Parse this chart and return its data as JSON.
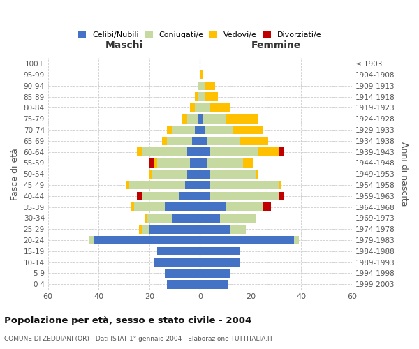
{
  "age_groups": [
    "0-4",
    "5-9",
    "10-14",
    "15-19",
    "20-24",
    "25-29",
    "30-34",
    "35-39",
    "40-44",
    "45-49",
    "50-54",
    "55-59",
    "60-64",
    "65-69",
    "70-74",
    "75-79",
    "80-84",
    "85-89",
    "90-94",
    "95-99",
    "100+"
  ],
  "birth_years": [
    "1999-2003",
    "1994-1998",
    "1989-1993",
    "1984-1988",
    "1979-1983",
    "1974-1978",
    "1969-1973",
    "1964-1968",
    "1959-1963",
    "1954-1958",
    "1949-1953",
    "1944-1948",
    "1939-1943",
    "1934-1938",
    "1929-1933",
    "1924-1928",
    "1919-1923",
    "1914-1918",
    "1909-1913",
    "1904-1908",
    "≤ 1903"
  ],
  "maschi": {
    "celibi": [
      13,
      14,
      18,
      17,
      42,
      20,
      11,
      14,
      8,
      6,
      5,
      4,
      5,
      3,
      2,
      1,
      0,
      0,
      0,
      0,
      0
    ],
    "coniugati": [
      0,
      0,
      0,
      0,
      2,
      3,
      10,
      12,
      15,
      22,
      14,
      13,
      18,
      10,
      9,
      4,
      2,
      1,
      1,
      0,
      0
    ],
    "vedovi": [
      0,
      0,
      0,
      0,
      0,
      1,
      1,
      1,
      0,
      1,
      1,
      1,
      2,
      2,
      2,
      2,
      2,
      1,
      0,
      0,
      0
    ],
    "divorziati": [
      0,
      0,
      0,
      0,
      0,
      0,
      0,
      0,
      2,
      0,
      0,
      2,
      0,
      0,
      0,
      0,
      0,
      0,
      0,
      0,
      0
    ]
  },
  "femmine": {
    "nubili": [
      11,
      12,
      16,
      16,
      37,
      12,
      8,
      10,
      4,
      4,
      4,
      3,
      4,
      3,
      2,
      1,
      0,
      0,
      0,
      0,
      0
    ],
    "coniugate": [
      0,
      0,
      0,
      0,
      2,
      6,
      14,
      15,
      27,
      27,
      18,
      14,
      19,
      13,
      11,
      9,
      4,
      2,
      2,
      0,
      0
    ],
    "vedove": [
      0,
      0,
      0,
      0,
      0,
      0,
      0,
      0,
      0,
      1,
      1,
      4,
      8,
      11,
      12,
      13,
      8,
      5,
      4,
      1,
      0
    ],
    "divorziate": [
      0,
      0,
      0,
      0,
      0,
      0,
      0,
      3,
      2,
      0,
      0,
      0,
      2,
      0,
      0,
      0,
      0,
      0,
      0,
      0,
      0
    ]
  },
  "colors": {
    "celibi": "#4472c4",
    "coniugati": "#c5d9a0",
    "vedovi": "#ffc000",
    "divorziati": "#c00000"
  },
  "xlim": 60,
  "title": "Popolazione per età, sesso e stato civile - 2004",
  "subtitle": "COMUNE DI ZEDDIANI (OR) - Dati ISTAT 1° gennaio 2004 - Elaborazione TUTTITALIA.IT",
  "ylabel_left": "Fasce di età",
  "ylabel_right": "Anni di nascita",
  "xlabel_left": "Maschi",
  "xlabel_right": "Femmine",
  "bg_color": "#ffffff",
  "grid_color": "#cccccc",
  "bar_height": 0.8
}
